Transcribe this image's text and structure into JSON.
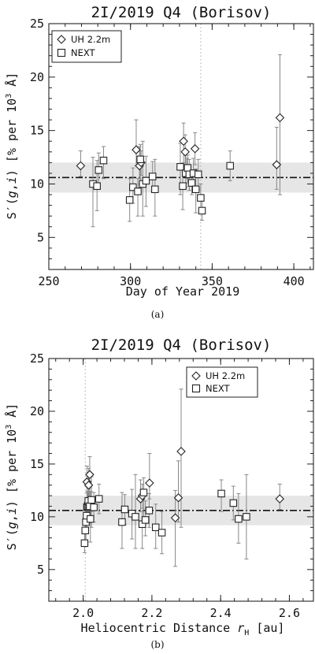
{
  "chart_data": [
    {
      "type": "scatter",
      "title": "2I/2019 Q4 (Borisov)",
      "xlabel": "Day of Year 2019",
      "ylabel": "S'(g,i) [% per 10^3 Å]",
      "xlim": [
        250,
        412
      ],
      "ylim": [
        2,
        25
      ],
      "xticks": [
        "250",
        "300",
        "350",
        "400"
      ],
      "yticks": [
        "5",
        "10",
        "15",
        "20",
        "25"
      ],
      "caption": "(a)",
      "legend_position": "top-left",
      "mean_line": 10.6,
      "band": [
        9.2,
        12.0
      ],
      "vline": 343,
      "series": [
        {
          "name": "UH 2.2m",
          "marker": "diamond",
          "points": [
            {
              "x": 269.5,
              "y": 11.7,
              "lo": 10.7,
              "hi": 13.1
            },
            {
              "x": 303.5,
              "y": 13.2,
              "lo": 11.7,
              "hi": 16.0
            },
            {
              "x": 305.5,
              "y": 11.7,
              "lo": 10.5,
              "hi": 13.5
            },
            {
              "x": 306.5,
              "y": 12.0,
              "lo": 10.8,
              "hi": 13.1
            },
            {
              "x": 332.5,
              "y": 14.0,
              "lo": 12.0,
              "hi": 15.7
            },
            {
              "x": 333.5,
              "y": 13.0,
              "lo": 11.5,
              "hi": 14.6
            },
            {
              "x": 334.5,
              "y": 11.3,
              "lo": 10.5,
              "hi": 12.4
            },
            {
              "x": 339.5,
              "y": 13.3,
              "lo": 11.8,
              "hi": 14.8
            },
            {
              "x": 389.5,
              "y": 11.8,
              "lo": 9.5,
              "hi": 15.3
            },
            {
              "x": 391.5,
              "y": 16.2,
              "lo": 9.0,
              "hi": 22.1
            }
          ]
        },
        {
          "name": "NEXT",
          "marker": "square",
          "points": [
            {
              "x": 277,
              "y": 10.0,
              "lo": 6.0,
              "hi": 12.5
            },
            {
              "x": 279.5,
              "y": 9.8,
              "lo": 7.5,
              "hi": 12.2
            },
            {
              "x": 280.5,
              "y": 11.3,
              "lo": 9.7,
              "hi": 12.9
            },
            {
              "x": 283.5,
              "y": 12.2,
              "lo": 10.5,
              "hi": 13.5
            },
            {
              "x": 299.5,
              "y": 8.5,
              "lo": 6.5,
              "hi": 10.5
            },
            {
              "x": 301.5,
              "y": 9.7,
              "lo": 8.2,
              "hi": 11.5
            },
            {
              "x": 304.5,
              "y": 9.3,
              "lo": 7.0,
              "hi": 10.5
            },
            {
              "x": 306,
              "y": 12.3,
              "lo": 10.0,
              "hi": 13.7
            },
            {
              "x": 307.5,
              "y": 10.0,
              "lo": 7.0,
              "hi": 14.0
            },
            {
              "x": 309.5,
              "y": 10.3,
              "lo": 7.9,
              "hi": 12.6
            },
            {
              "x": 313.5,
              "y": 10.7,
              "lo": 9.3,
              "hi": 12.1
            },
            {
              "x": 315,
              "y": 9.5,
              "lo": 7.0,
              "hi": 12.3
            },
            {
              "x": 330.5,
              "y": 11.6,
              "lo": 9.0,
              "hi": 13.8
            },
            {
              "x": 332,
              "y": 9.8,
              "lo": 7.6,
              "hi": 11.5
            },
            {
              "x": 333.8,
              "y": 11.0,
              "lo": 9.7,
              "hi": 12.7
            },
            {
              "x": 335,
              "y": 11.5,
              "lo": 10.1,
              "hi": 12.7
            },
            {
              "x": 336,
              "y": 10.9,
              "lo": 9.4,
              "hi": 12.3
            },
            {
              "x": 337.5,
              "y": 10.1,
              "lo": 9.0,
              "hi": 11.3
            },
            {
              "x": 338.5,
              "y": 11.0,
              "lo": 9.7,
              "hi": 12.4
            },
            {
              "x": 340,
              "y": 9.5,
              "lo": 7.3,
              "hi": 11.4
            },
            {
              "x": 341.5,
              "y": 10.9,
              "lo": 9.5,
              "hi": 12.3
            },
            {
              "x": 343,
              "y": 8.7,
              "lo": 7.5,
              "hi": 10.0
            },
            {
              "x": 343.8,
              "y": 7.5,
              "lo": 6.6,
              "hi": 8.4
            },
            {
              "x": 361,
              "y": 11.7,
              "lo": 10.3,
              "hi": 13.1
            }
          ]
        }
      ]
    },
    {
      "type": "scatter",
      "title": "2I/2019 Q4 (Borisov)",
      "xlabel": "Heliocentric Distance r_H [au]",
      "ylabel": "S'(g,i) [% per 10^3 Å]",
      "xlim": [
        1.9,
        2.67
      ],
      "ylim": [
        2,
        25
      ],
      "xticks": [
        "2.0",
        "2.2",
        "2.4",
        "2.6"
      ],
      "yticks": [
        "5",
        "10",
        "15",
        "20",
        "25"
      ],
      "caption": "(b)",
      "legend_position": "top-right",
      "mean_line": 10.6,
      "band": [
        9.2,
        12.0
      ],
      "vline": 2.006,
      "series": [
        {
          "name": "UH 2.2m",
          "marker": "diamond",
          "points": [
            {
              "x": 2.011,
              "y": 13.3,
              "lo": 11.8,
              "hi": 14.8
            },
            {
              "x": 2.016,
              "y": 13.0,
              "lo": 11.5,
              "hi": 14.6
            },
            {
              "x": 2.019,
              "y": 14.0,
              "lo": 12.0,
              "hi": 15.7
            },
            {
              "x": 2.022,
              "y": 11.3,
              "lo": 10.5,
              "hi": 12.4
            },
            {
              "x": 2.167,
              "y": 11.7,
              "lo": 10.5,
              "hi": 13.5
            },
            {
              "x": 2.172,
              "y": 12.0,
              "lo": 10.8,
              "hi": 13.1
            },
            {
              "x": 2.193,
              "y": 13.2,
              "lo": 11.7,
              "hi": 16.0
            },
            {
              "x": 2.268,
              "y": 9.9,
              "lo": 5.3,
              "hi": 12.5
            },
            {
              "x": 2.277,
              "y": 11.8,
              "lo": 9.5,
              "hi": 15.3
            },
            {
              "x": 2.285,
              "y": 16.2,
              "lo": 9.0,
              "hi": 22.1
            },
            {
              "x": 2.572,
              "y": 11.7,
              "lo": 10.7,
              "hi": 13.1
            }
          ]
        },
        {
          "name": "NEXT",
          "marker": "square",
          "points": [
            {
              "x": 2.004,
              "y": 7.5,
              "lo": 6.6,
              "hi": 8.4
            },
            {
              "x": 2.006,
              "y": 8.7,
              "lo": 7.5,
              "hi": 10.0
            },
            {
              "x": 2.008,
              "y": 9.5,
              "lo": 7.3,
              "hi": 11.4
            },
            {
              "x": 2.01,
              "y": 10.1,
              "lo": 9.0,
              "hi": 11.3
            },
            {
              "x": 2.011,
              "y": 10.9,
              "lo": 9.5,
              "hi": 12.3
            },
            {
              "x": 2.013,
              "y": 11.0,
              "lo": 9.7,
              "hi": 12.4
            },
            {
              "x": 2.015,
              "y": 11.5,
              "lo": 10.1,
              "hi": 12.7
            },
            {
              "x": 2.017,
              "y": 10.9,
              "lo": 9.4,
              "hi": 12.3
            },
            {
              "x": 2.019,
              "y": 11.0,
              "lo": 9.7,
              "hi": 12.7
            },
            {
              "x": 2.021,
              "y": 9.8,
              "lo": 7.6,
              "hi": 11.5
            },
            {
              "x": 2.024,
              "y": 11.6,
              "lo": 9.0,
              "hi": 13.8
            },
            {
              "x": 2.031,
              "y": 10.9,
              "lo": 9.5,
              "hi": 12.3
            },
            {
              "x": 2.046,
              "y": 11.7,
              "lo": 10.3,
              "hi": 13.1
            },
            {
              "x": 2.113,
              "y": 9.5,
              "lo": 7.0,
              "hi": 12.3
            },
            {
              "x": 2.121,
              "y": 10.7,
              "lo": 9.3,
              "hi": 12.1
            },
            {
              "x": 2.142,
              "y": 10.3,
              "lo": 7.9,
              "hi": 12.6
            },
            {
              "x": 2.152,
              "y": 10.0,
              "lo": 7.0,
              "hi": 14.0
            },
            {
              "x": 2.172,
              "y": 9.3,
              "lo": 7.0,
              "hi": 10.5
            },
            {
              "x": 2.176,
              "y": 12.3,
              "lo": 10.0,
              "hi": 13.7
            },
            {
              "x": 2.181,
              "y": 9.7,
              "lo": 8.2,
              "hi": 11.5
            },
            {
              "x": 2.192,
              "y": 10.6,
              "lo": 9.0,
              "hi": 12.2
            },
            {
              "x": 2.211,
              "y": 9.0,
              "lo": 7.0,
              "hi": 11.2
            },
            {
              "x": 2.229,
              "y": 8.5,
              "lo": 6.5,
              "hi": 10.5
            },
            {
              "x": 2.402,
              "y": 12.2,
              "lo": 10.5,
              "hi": 13.5
            },
            {
              "x": 2.437,
              "y": 11.3,
              "lo": 9.7,
              "hi": 12.9
            },
            {
              "x": 2.452,
              "y": 9.8,
              "lo": 7.5,
              "hi": 12.2
            },
            {
              "x": 2.475,
              "y": 10.0,
              "lo": 6.0,
              "hi": 14.0
            }
          ]
        }
      ]
    }
  ]
}
